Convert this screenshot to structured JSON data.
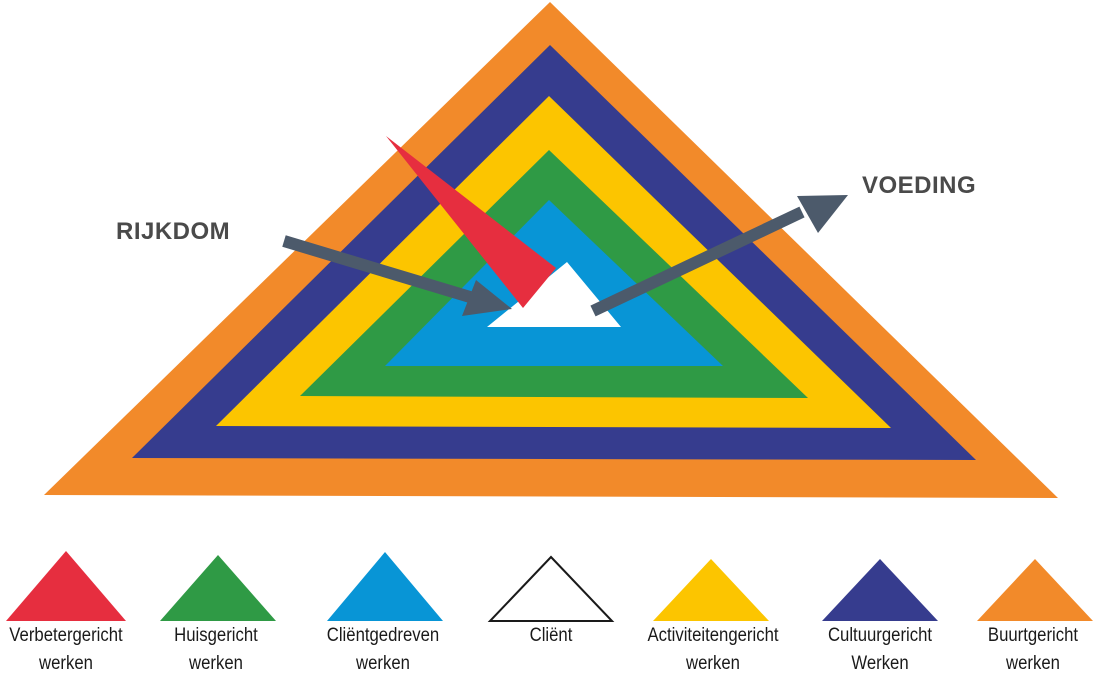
{
  "annotations": {
    "left": "RIJKDOM",
    "right": "VOEDING"
  },
  "layers": [
    {
      "key": "buurtgericht",
      "color": "#f28a2a"
    },
    {
      "key": "cultuurgericht",
      "color": "#363c8e"
    },
    {
      "key": "activiteitengericht",
      "color": "#fcc500"
    },
    {
      "key": "huisgericht",
      "color": "#2f9a45"
    },
    {
      "key": "clientgedreven",
      "color": "#0895d6"
    },
    {
      "key": "client",
      "color": "#ffffff"
    }
  ],
  "pointer_color": "#e62e3f",
  "arrow_color": "#4c5a6b",
  "legend": [
    {
      "line1": "Verbetergericht",
      "line2": "werken",
      "color": "#e62e3f",
      "outline": false
    },
    {
      "line1": "Huisgericht",
      "line2": "werken",
      "color": "#2f9a45",
      "outline": false
    },
    {
      "line1": "Cliëntgedreven",
      "line2": "werken",
      "color": "#0895d6",
      "outline": false
    },
    {
      "line1": "Cliënt",
      "line2": "",
      "color": "#ffffff",
      "outline": true
    },
    {
      "line1": "Activiteitengericht",
      "line2": "werken",
      "color": "#fcc500",
      "outline": false
    },
    {
      "line1": "Cultuurgericht",
      "line2": "Werken",
      "color": "#363c8e",
      "outline": false
    },
    {
      "line1": "Buurtgericht",
      "line2": "werken",
      "color": "#f28a2a",
      "outline": false
    }
  ]
}
